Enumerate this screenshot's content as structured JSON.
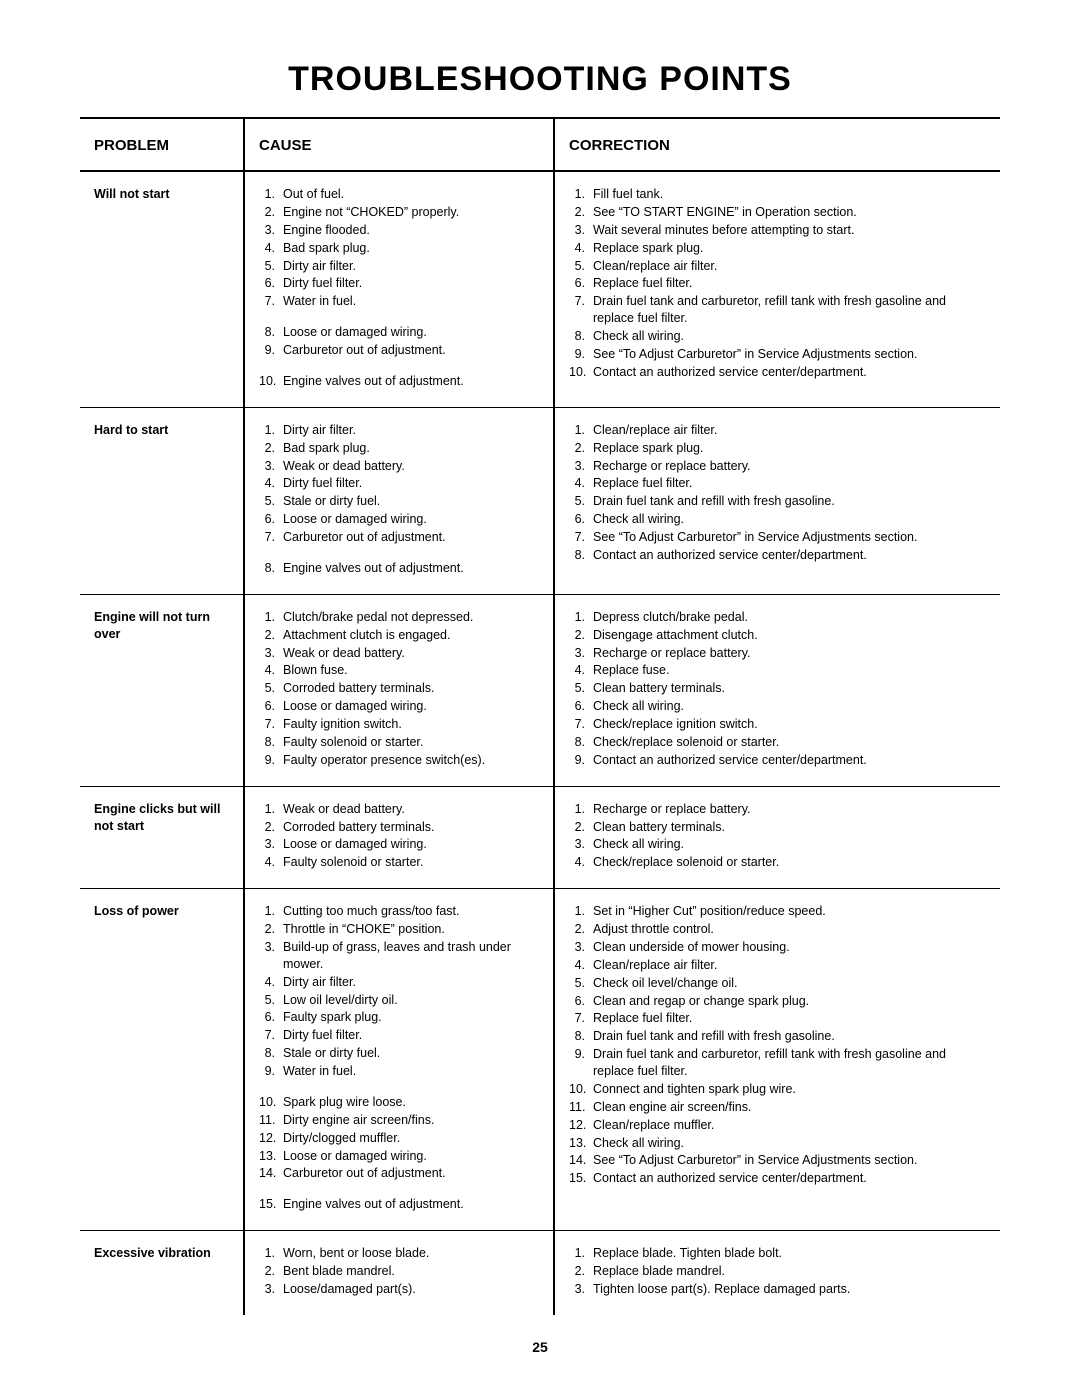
{
  "title": "TROUBLESHOOTING POINTS",
  "page_number": "25",
  "headers": {
    "problem": "PROBLEM",
    "cause": "CAUSE",
    "correction": "CORRECTION"
  },
  "sections": [
    {
      "problem": "Will not start",
      "causes": [
        "Out of fuel.",
        "Engine not “CHOKED” properly.",
        "Engine flooded.",
        "Bad spark plug.",
        "Dirty air filter.",
        "Dirty fuel filter.",
        "Water in fuel.",
        "Loose or damaged wiring.",
        "Carburetor out of adjustment.",
        "Engine valves out of adjustment."
      ],
      "cause_breaks": [
        7,
        9
      ],
      "corrections": [
        "Fill fuel tank.",
        "See “TO START ENGINE” in Operation section.",
        "Wait several minutes before attempting to start.",
        "Replace spark plug.",
        "Clean/replace air filter.",
        "Replace fuel filter.",
        "Drain fuel tank and carburetor, refill tank with fresh gasoline and replace fuel filter.",
        "Check all wiring.",
        "See “To Adjust Carburetor” in Service Adjustments section.",
        "Contact an authorized service center/department."
      ]
    },
    {
      "problem": "Hard to start",
      "causes": [
        "Dirty air filter.",
        "Bad spark plug.",
        "Weak or dead battery.",
        "Dirty fuel filter.",
        "Stale or dirty fuel.",
        "Loose or damaged wiring.",
        "Carburetor out of adjustment.",
        "Engine valves out of adjustment."
      ],
      "cause_breaks": [
        7
      ],
      "corrections": [
        "Clean/replace air filter.",
        "Replace spark plug.",
        "Recharge or replace battery.",
        "Replace fuel filter.",
        "Drain fuel tank and refill with fresh gasoline.",
        "Check all wiring.",
        "See “To Adjust Carburetor” in Service Adjustments section.",
        "Contact an authorized service center/department."
      ]
    },
    {
      "problem": "Engine will not turn over",
      "causes": [
        "Clutch/brake pedal not depressed.",
        "Attachment clutch is engaged.",
        "Weak or dead battery.",
        "Blown fuse.",
        "Corroded battery terminals.",
        "Loose or damaged wiring.",
        "Faulty ignition switch.",
        "Faulty solenoid or starter.",
        "Faulty operator presence switch(es)."
      ],
      "cause_breaks": [],
      "corrections": [
        "Depress clutch/brake pedal.",
        "Disengage attachment clutch.",
        "Recharge or replace battery.",
        "Replace fuse.",
        "Clean battery terminals.",
        "Check all wiring.",
        "Check/replace ignition switch.",
        "Check/replace solenoid or starter.",
        "Contact an authorized service center/department."
      ]
    },
    {
      "problem": "Engine clicks but will not start",
      "causes": [
        "Weak or dead battery.",
        "Corroded battery terminals.",
        "Loose or damaged wiring.",
        "Faulty solenoid or starter."
      ],
      "cause_breaks": [],
      "corrections": [
        "Recharge or replace battery.",
        "Clean battery terminals.",
        "Check all wiring.",
        "Check/replace solenoid or starter."
      ]
    },
    {
      "problem": "Loss of power",
      "causes": [
        "Cutting too much grass/too fast.",
        "Throttle in “CHOKE” position.",
        "Build-up of grass, leaves and trash under mower.",
        "Dirty air filter.",
        "Low oil level/dirty oil.",
        "Faulty spark plug.",
        "Dirty fuel filter.",
        "Stale or dirty fuel.",
        "Water in fuel.",
        "Spark plug wire loose.",
        "Dirty engine air screen/fins.",
        "Dirty/clogged muffler.",
        "Loose or damaged wiring.",
        "Carburetor out of adjustment.",
        "Engine valves out of adjustment."
      ],
      "cause_breaks": [
        9,
        14
      ],
      "corrections": [
        "Set in “Higher Cut” position/reduce speed.",
        "Adjust throttle control.",
        "Clean underside of mower housing.",
        "Clean/replace air filter.",
        "Check oil level/change oil.",
        "Clean and regap or change spark plug.",
        "Replace fuel filter.",
        "Drain fuel tank and refill with fresh gasoline.",
        "Drain fuel tank and carburetor, refill tank with fresh gasoline and replace fuel filter.",
        "Connect and tighten spark plug wire.",
        "Clean engine air screen/fins.",
        "Clean/replace muffler.",
        "Check all wiring.",
        "See “To Adjust Carburetor” in Service Adjustments section.",
        "Contact an authorized service center/department."
      ]
    },
    {
      "problem": "Excessive vibration",
      "causes": [
        "Worn, bent or loose blade.",
        "Bent blade mandrel.",
        "Loose/damaged part(s)."
      ],
      "cause_breaks": [],
      "corrections": [
        "Replace blade.  Tighten blade bolt.",
        "Replace blade mandrel.",
        "Tighten loose part(s).  Replace damaged parts."
      ]
    }
  ]
}
